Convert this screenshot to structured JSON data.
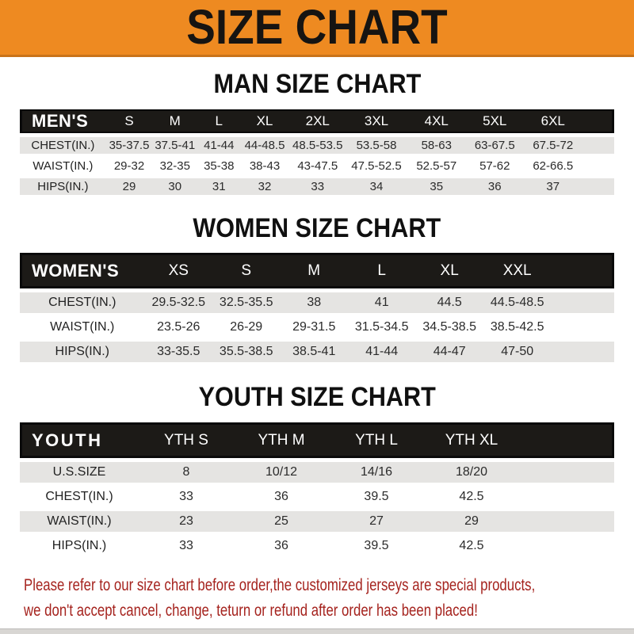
{
  "banner": {
    "title": "SIZE CHART"
  },
  "colors": {
    "banner_bg": "#ee8a21",
    "banner_border": "#c9731a",
    "bar_bg": "#1c1a17",
    "row_stripe": "#e5e4e2",
    "disclaimer_red": "#a5231e"
  },
  "sections": [
    {
      "heading": "MAN SIZE CHART",
      "table": {
        "header_label": "MEN'S",
        "columns": [
          "S",
          "M",
          "L",
          "XL",
          "2XL",
          "3XL",
          "4XL",
          "5XL",
          "6XL"
        ],
        "rows": [
          {
            "label": "CHEST(IN.)",
            "values": [
              "35-37.5",
              "37.5-41",
              "41-44",
              "44-48.5",
              "48.5-53.5",
              "53.5-58",
              "58-63",
              "63-67.5",
              "67.5-72"
            ]
          },
          {
            "label": "WAIST(IN.)",
            "values": [
              "29-32",
              "32-35",
              "35-38",
              "38-43",
              "43-47.5",
              "47.5-52.5",
              "52.5-57",
              "57-62",
              "62-66.5"
            ]
          },
          {
            "label": "HIPS(IN.)",
            "values": [
              "29",
              "30",
              "31",
              "32",
              "33",
              "34",
              "35",
              "36",
              "37"
            ]
          }
        ]
      }
    },
    {
      "heading": "WOMEN SIZE CHART",
      "table": {
        "header_label": "WOMEN'S",
        "columns": [
          "XS",
          "S",
          "M",
          "L",
          "XL",
          "XXL"
        ],
        "rows": [
          {
            "label": "CHEST(IN.)",
            "values": [
              "29.5-32.5",
              "32.5-35.5",
              "38",
              "41",
              "44.5",
              "44.5-48.5"
            ]
          },
          {
            "label": "WAIST(IN.)",
            "values": [
              "23.5-26",
              "26-29",
              "29-31.5",
              "31.5-34.5",
              "34.5-38.5",
              "38.5-42.5"
            ]
          },
          {
            "label": "HIPS(IN.)",
            "values": [
              "33-35.5",
              "35.5-38.5",
              "38.5-41",
              "41-44",
              "44-47",
              "47-50"
            ]
          }
        ]
      }
    },
    {
      "heading": "YOUTH SIZE CHART",
      "table": {
        "header_label": "YOUTH",
        "columns": [
          "YTH S",
          "YTH M",
          "YTH L",
          "YTH XL"
        ],
        "rows": [
          {
            "label": "U.S.SIZE",
            "values": [
              "8",
              "10/12",
              "14/16",
              "18/20"
            ]
          },
          {
            "label": "CHEST(IN.)",
            "values": [
              "33",
              "36",
              "39.5",
              "42.5"
            ]
          },
          {
            "label": "WAIST(IN.)",
            "values": [
              "23",
              "25",
              "27",
              "29"
            ]
          },
          {
            "label": "HIPS(IN.)",
            "values": [
              "33",
              "36",
              "39.5",
              "42.5"
            ]
          }
        ]
      }
    }
  ],
  "footer": {
    "line1": "Please refer to our size chart before order,the customized jerseys are special products,",
    "line2": "we don't accept cancel, change, teturn or refund after order has been placed!"
  }
}
